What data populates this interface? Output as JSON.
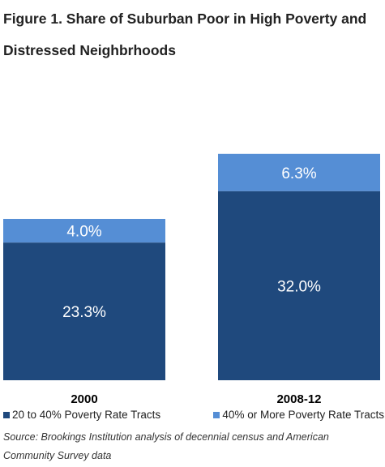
{
  "title": "Figure 1. Share of Suburban Poor in High Poverty and Distressed Neighbrhoods",
  "source": "Source: Brookings Institution analysis of decennial census and American Community Survey data",
  "colors": {
    "series_1": "#1f497d",
    "series_2": "#558ed5"
  },
  "chart_data": {
    "type": "bar",
    "stacked": true,
    "categories": [
      "2000",
      "2008-12"
    ],
    "series": [
      {
        "name": "20 to 40% Poverty Rate Tracts",
        "values": [
          23.3,
          32.0
        ],
        "labels": [
          "23.3%",
          "32.0%"
        ]
      },
      {
        "name": "40% or More Poverty Rate Tracts",
        "values": [
          4.0,
          6.3
        ],
        "labels": [
          "4.0%",
          "6.3%"
        ]
      }
    ],
    "ylim": [
      0,
      40
    ],
    "legend_position": "bottom",
    "grid": false
  }
}
